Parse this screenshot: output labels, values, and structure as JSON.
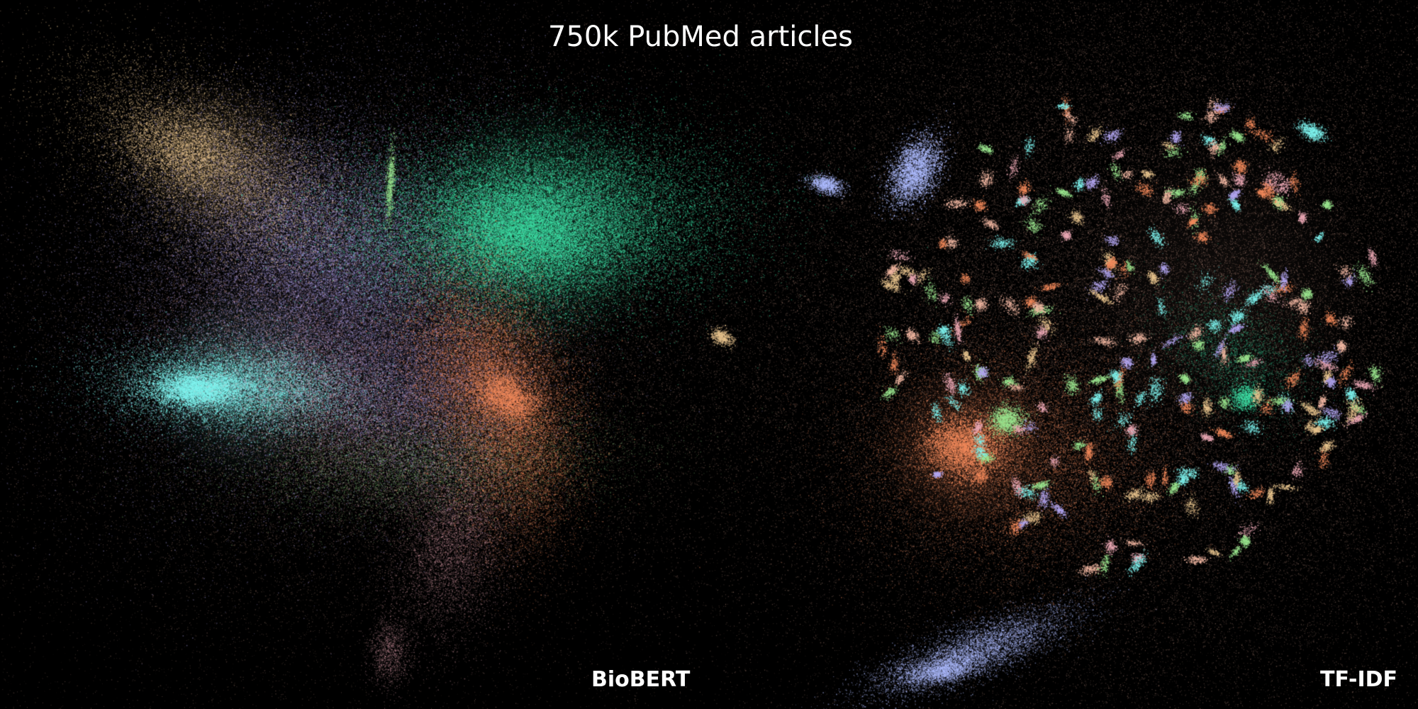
{
  "title": "750k PubMed articles",
  "panels": [
    {
      "label": "BioBERT"
    },
    {
      "label": "TF-IDF"
    }
  ],
  "colors": {
    "background": "#000000",
    "text": "#ffffff",
    "tan": "#e8c48e",
    "lavender": "#b3a6f0",
    "teal_green": "#3ee0a6",
    "cyan": "#7ff3ee",
    "coral": "#f28a5c",
    "pink": "#eaa8b4",
    "light_green": "#9be58f",
    "peach": "#f2b8a3",
    "periwinkle": "#aebcff"
  }
}
